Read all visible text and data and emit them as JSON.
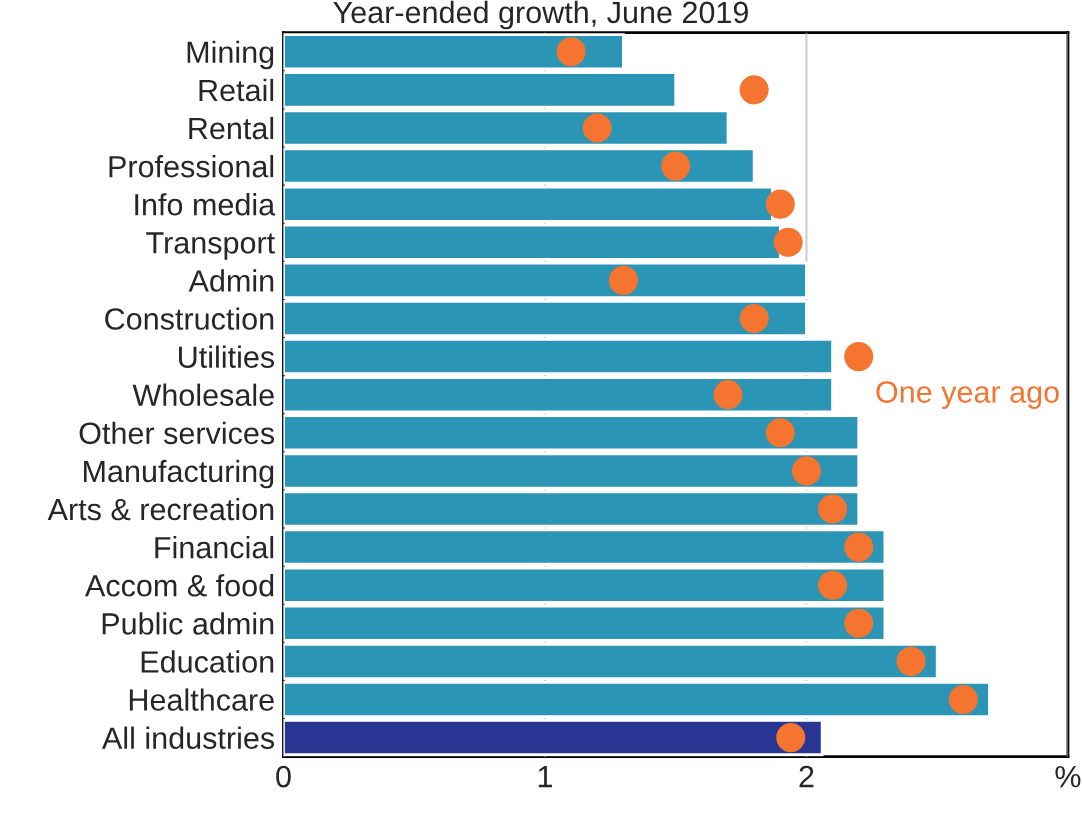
{
  "chart_data": {
    "type": "bar",
    "orientation": "horizontal",
    "title": "Year-ended growth, June 2019",
    "categories": [
      "Mining",
      "Retail",
      "Rental",
      "Professional",
      "Info media",
      "Transport",
      "Admin",
      "Construction",
      "Utilities",
      "Wholesale",
      "Other services",
      "Manufacturing",
      "Arts & recreation",
      "Financial",
      "Accom & food",
      "Public admin",
      "Education",
      "Healthcare",
      "All industries"
    ],
    "series": [
      {
        "colors": [
          "#2a95b5",
          "#2a95b5",
          "#2a95b5",
          "#2a95b5",
          "#2a95b5",
          "#2a95b5",
          "#2a95b5",
          "#2a95b5",
          "#2a95b5",
          "#2a95b5",
          "#2a95b5",
          "#2a95b5",
          "#2a95b5",
          "#2a95b5",
          "#2a95b5",
          "#2a95b5",
          "#2a95b5",
          "#2a95b5",
          "#283593"
        ],
        "values": [
          1.3,
          1.5,
          1.7,
          1.8,
          1.87,
          1.9,
          2.0,
          2.0,
          2.1,
          2.1,
          2.2,
          2.2,
          2.2,
          2.3,
          2.3,
          2.3,
          2.5,
          2.7,
          2.06
        ]
      },
      {
        "type": "scatter",
        "name": "One year ago",
        "color": "#f47430",
        "marker": "circle",
        "values": [
          1.1,
          1.8,
          1.2,
          1.5,
          1.9,
          1.93,
          1.3,
          1.8,
          2.2,
          1.7,
          1.9,
          2.0,
          2.1,
          2.2,
          2.1,
          2.2,
          2.4,
          2.6,
          1.94
        ]
      }
    ],
    "xlim": [
      0,
      3
    ],
    "xticks": [
      0,
      1,
      2,
      {
        "value": 3,
        "label": "%"
      }
    ],
    "grid": "x"
  }
}
